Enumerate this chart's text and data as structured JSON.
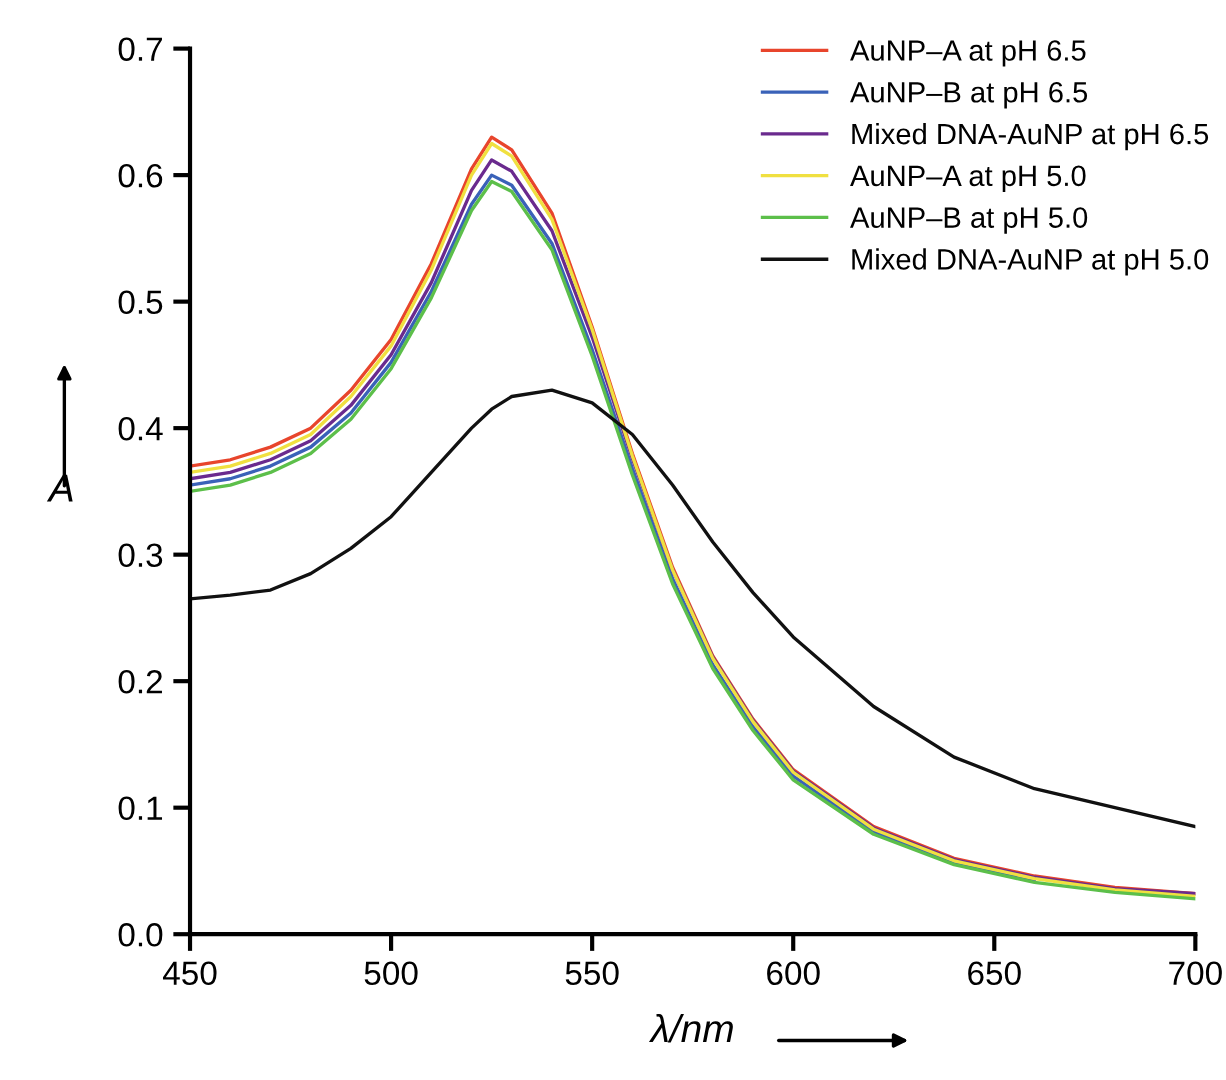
{
  "chart_data": {
    "type": "line",
    "xlabel": "λ/nm",
    "ylabel": "A",
    "x": [
      450,
      460,
      470,
      480,
      490,
      500,
      510,
      520,
      525,
      530,
      540,
      550,
      560,
      570,
      580,
      590,
      600,
      620,
      640,
      660,
      680,
      700
    ],
    "series": [
      {
        "name": "AuNP–A at pH 6.5",
        "color": "#e8452c",
        "values": [
          0.37,
          0.375,
          0.385,
          0.4,
          0.43,
          0.47,
          0.53,
          0.605,
          0.63,
          0.62,
          0.57,
          0.48,
          0.38,
          0.29,
          0.22,
          0.17,
          0.13,
          0.085,
          0.06,
          0.046,
          0.037,
          0.032
        ]
      },
      {
        "name": "AuNP–B at pH 6.5",
        "color": "#3a62b8",
        "values": [
          0.355,
          0.36,
          0.37,
          0.385,
          0.412,
          0.452,
          0.508,
          0.577,
          0.6,
          0.592,
          0.546,
          0.462,
          0.368,
          0.281,
          0.213,
          0.164,
          0.125,
          0.081,
          0.057,
          0.043,
          null,
          null
        ]
      },
      {
        "name": "Mixed DNA-AuNP at pH 6.5",
        "color": "#6a2a8e",
        "values": [
          0.36,
          0.365,
          0.375,
          0.39,
          0.418,
          0.458,
          0.515,
          0.588,
          0.612,
          0.603,
          0.556,
          0.472,
          0.376,
          0.288,
          0.219,
          0.169,
          0.129,
          0.084,
          0.059,
          0.045,
          0.036,
          0.032
        ]
      },
      {
        "name": "AuNP–A at pH 5.0",
        "color": "#f0e040",
        "values": [
          0.365,
          0.37,
          0.38,
          0.395,
          0.425,
          0.465,
          0.525,
          0.6,
          0.625,
          0.615,
          0.565,
          0.478,
          0.378,
          0.288,
          0.218,
          0.168,
          0.128,
          0.083,
          0.058,
          0.044,
          0.035,
          0.03
        ]
      },
      {
        "name": "AuNP–B at pH 5.0",
        "color": "#5cbf4a",
        "values": [
          0.35,
          0.355,
          0.365,
          0.38,
          0.407,
          0.447,
          0.503,
          0.572,
          0.595,
          0.587,
          0.541,
          0.457,
          0.363,
          0.277,
          0.21,
          0.161,
          0.122,
          0.079,
          0.055,
          0.041,
          0.033,
          0.028
        ]
      },
      {
        "name": "Mixed DNA-AuNP at pH 5.0",
        "color": "#111111",
        "values": [
          0.265,
          0.268,
          0.272,
          0.285,
          0.305,
          0.33,
          0.365,
          0.4,
          0.415,
          0.425,
          0.43,
          0.42,
          0.395,
          0.355,
          0.31,
          0.27,
          0.235,
          0.18,
          0.14,
          0.115,
          0.1,
          0.085
        ]
      }
    ],
    "xlim": [
      450,
      700
    ],
    "xticks": [
      450,
      500,
      550,
      600,
      650,
      700
    ],
    "ylim": [
      0,
      0.7
    ],
    "yticks": [
      {
        "value": 0,
        "label": "0.0"
      },
      {
        "value": 0.1,
        "label": "0.1"
      },
      {
        "value": 0.2,
        "label": "0.2"
      },
      {
        "value": 0.3,
        "label": "0.3"
      },
      {
        "value": 0.4,
        "label": "0.4"
      },
      {
        "value": 0.5,
        "label": "0.5"
      },
      {
        "value": 0.6,
        "label": "0.6"
      },
      {
        "value": 0.7,
        "label": "0.7"
      }
    ],
    "legend": "top right",
    "grid": false
  }
}
